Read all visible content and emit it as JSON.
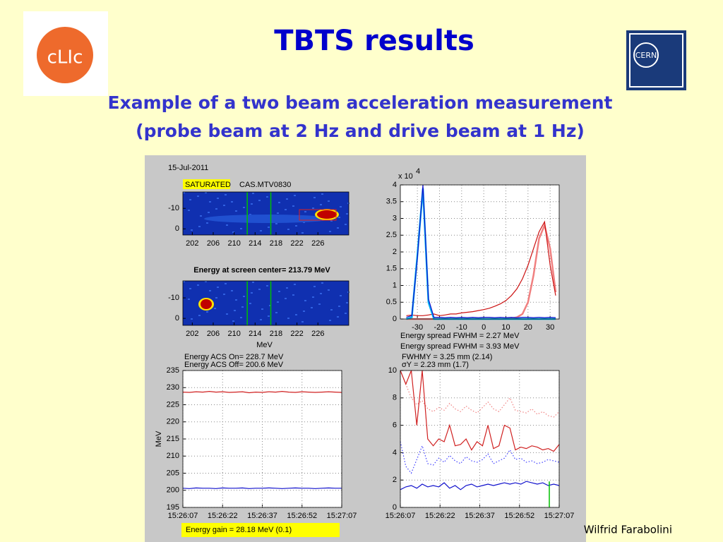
{
  "title": "TBTS results",
  "subtitle_lines": [
    "Example of a two beam acceleration measurement",
    "(probe beam at 2 Hz and drive beam at 1 Hz)"
  ],
  "logos": {
    "left": "cLIc",
    "right": "CERN"
  },
  "figure": {
    "date": "15-Jul-2011",
    "status": "SATURATED",
    "device": "CAS.MTV0830",
    "center_energy": "Energy at screen center= 213.79 MeV",
    "gain": "Energy gain = 28.18 MeV  (0.1)"
  },
  "footer": "Wilfrid Farabolini",
  "chart_data": [
    {
      "type": "image",
      "xlim": [
        200.2,
        231.9
      ],
      "ylim": [
        3,
        -18
      ],
      "xticks": [
        202,
        206,
        210,
        214,
        218,
        222,
        226
      ],
      "yticks": [
        -10,
        0
      ]
    },
    {
      "type": "image",
      "xlim": [
        200.2,
        231.9
      ],
      "ylim": [
        3.4,
        -18.3
      ],
      "xticks": [
        202,
        206,
        210,
        214,
        218,
        222,
        226
      ],
      "yticks": [
        -10,
        0
      ],
      "xlabel": "MeV"
    },
    {
      "type": "line",
      "y_multiplier": "x 10",
      "y_exponent": "4",
      "x": [
        -35,
        -32.5,
        -30,
        -27.5,
        -25,
        -22.5,
        -20,
        -17.5,
        -15,
        -12.5,
        -10,
        -7.5,
        -5,
        -2.5,
        0,
        2.5,
        5,
        7.5,
        10,
        12.5,
        15,
        17.5,
        20,
        22.5,
        25,
        27.5,
        30,
        32.5
      ],
      "xlim": [
        -37.7,
        34.1
      ],
      "ylim": [
        0,
        4
      ],
      "xticks": [
        -30,
        -20,
        -10,
        0,
        10,
        20,
        30
      ],
      "yticks": [
        0,
        0.5,
        1,
        1.5,
        2,
        2.5,
        3,
        3.5,
        4
      ],
      "series": [
        {
          "color": "#f08080",
          "width": 2.5,
          "values": [
            0,
            0,
            0,
            0,
            0,
            0,
            0,
            0,
            0,
            0,
            0,
            0,
            0,
            0,
            0,
            0,
            0,
            0,
            0,
            0.02,
            0.05,
            0.15,
            0.5,
            1.3,
            2.4,
            2.8,
            2.1,
            0.8
          ]
        },
        {
          "color": "#cc1111",
          "width": 1.2,
          "values": [
            0.1,
            0.12,
            0.1,
            0.1,
            0.12,
            0.15,
            0.1,
            0.12,
            0.15,
            0.15,
            0.18,
            0.2,
            0.22,
            0.25,
            0.28,
            0.32,
            0.38,
            0.45,
            0.55,
            0.7,
            0.9,
            1.2,
            1.6,
            2.1,
            2.6,
            2.9,
            1.6,
            0.7
          ]
        },
        {
          "color": "#00b0f0",
          "width": 2.5,
          "values": [
            0,
            0.05,
            1.9,
            3.9,
            0.5,
            0,
            0,
            0,
            0,
            0,
            0,
            0,
            0,
            0,
            0,
            0,
            0,
            0,
            0,
            0,
            0,
            0,
            0,
            0,
            0,
            0,
            0,
            0
          ]
        },
        {
          "color": "#1010cc",
          "width": 1.2,
          "values": [
            0.05,
            0.1,
            1.8,
            4,
            0.6,
            0.05,
            0.05,
            0.04,
            0.05,
            0.04,
            0.05,
            0.04,
            0.05,
            0.04,
            0.05,
            0.05,
            0.04,
            0.05,
            0.04,
            0.05,
            0.04,
            0.05,
            0.05,
            0.04,
            0.05,
            0.04,
            0.05,
            0.04
          ]
        }
      ],
      "annotations": [
        {
          "text": "Energy spread FWHM = 2.27 MeV",
          "color": "#1010e0"
        },
        {
          "text": "Energy spread FWHM = 3.93 MeV",
          "color": "#d02020"
        }
      ]
    },
    {
      "type": "line",
      "ylabel": "MeV",
      "ylim": [
        195,
        235
      ],
      "yticks": [
        195,
        200,
        205,
        210,
        215,
        220,
        225,
        230,
        235
      ],
      "xticks": [
        "15:26:07",
        "15:26:22",
        "15:26:37",
        "15:26:52",
        "15:27:07"
      ],
      "series": [
        {
          "color": "#d02020",
          "width": 1.2,
          "values": [
            228.7,
            228.6,
            228.8,
            228.7,
            228.9,
            228.7,
            228.8,
            228.6,
            228.7,
            228.8,
            228.5,
            228.7,
            228.6,
            228.8,
            228.7,
            228.9,
            228.7,
            228.6,
            228.8,
            228.7,
            228.6,
            228.7,
            228.8,
            228.7,
            228.6
          ]
        },
        {
          "color": "#1010cc",
          "width": 1.2,
          "values": [
            200.6,
            200.5,
            200.7,
            200.6,
            200.6,
            200.5,
            200.7,
            200.6,
            200.6,
            200.7,
            200.5,
            200.6,
            200.6,
            200.7,
            200.6,
            200.5,
            200.6,
            200.7,
            200.6,
            200.6,
            200.5,
            200.6,
            200.7,
            200.6,
            200.6
          ]
        }
      ],
      "annotations": [
        {
          "text": "Energy ACS On= 228.7 MeV",
          "color": "#d02020"
        },
        {
          "text": "Energy ACS Off= 200.6 MeV",
          "color": "#1010e0"
        }
      ]
    },
    {
      "type": "line",
      "ylim": [
        0,
        10
      ],
      "yticks": [
        0,
        2,
        4,
        6,
        8,
        10
      ],
      "xticks": [
        "15:26:07",
        "15:26:22",
        "15:26:37",
        "15:26:52",
        "15:27:07"
      ],
      "series": [
        {
          "color": "#f08080",
          "width": 1.2,
          "dash": true,
          "values": [
            10,
            9,
            8,
            7.5,
            7.8,
            7.2,
            7,
            7.3,
            7.1,
            7.6,
            7.2,
            7,
            7.4,
            7.1,
            6.9,
            7.3,
            7.7,
            7.2,
            7,
            7.5,
            8,
            7.1,
            7,
            6.9,
            7.2,
            6.8,
            7,
            6.7,
            6.6,
            7
          ]
        },
        {
          "color": "#d02020",
          "width": 1.2,
          "values": [
            10,
            9,
            10,
            6,
            10,
            5,
            4.5,
            5,
            4.8,
            6,
            4.5,
            4.6,
            5,
            4.2,
            4.8,
            4.5,
            6,
            4.3,
            4.5,
            6,
            5.8,
            4.2,
            4.4,
            4.3,
            4.5,
            4.4,
            4.2,
            4.3,
            4.1,
            4.6
          ]
        },
        {
          "color": "#4040ff",
          "width": 1.2,
          "dash": true,
          "values": [
            4.8,
            3,
            2.5,
            3.5,
            4.5,
            3.2,
            3.1,
            3.6,
            3.3,
            3.8,
            3.4,
            3.2,
            3.7,
            3.4,
            3.3,
            3.5,
            3.9,
            3.2,
            3.4,
            3.6,
            4.2,
            3.5,
            3.6,
            3.3,
            3.4,
            3.2,
            3.3,
            3.5,
            3.4,
            3.3
          ]
        },
        {
          "color": "#1010cc",
          "width": 1.2,
          "values": [
            1.3,
            1.5,
            1.6,
            1.4,
            1.7,
            1.5,
            1.6,
            1.5,
            1.8,
            1.4,
            1.6,
            1.3,
            1.6,
            1.7,
            1.5,
            1.6,
            1.7,
            1.6,
            1.7,
            1.8,
            1.7,
            1.8,
            1.7,
            1.9,
            1.8,
            1.7,
            1.8,
            1.6,
            1.7,
            1.6
          ]
        }
      ],
      "annotations": [
        {
          "text": "FWHMY = 3.25 mm  (2.14)",
          "color": "#d02020"
        },
        {
          "text": "σY  = 2.23 mm  (1.7)",
          "color": "#d02020"
        }
      ]
    }
  ]
}
